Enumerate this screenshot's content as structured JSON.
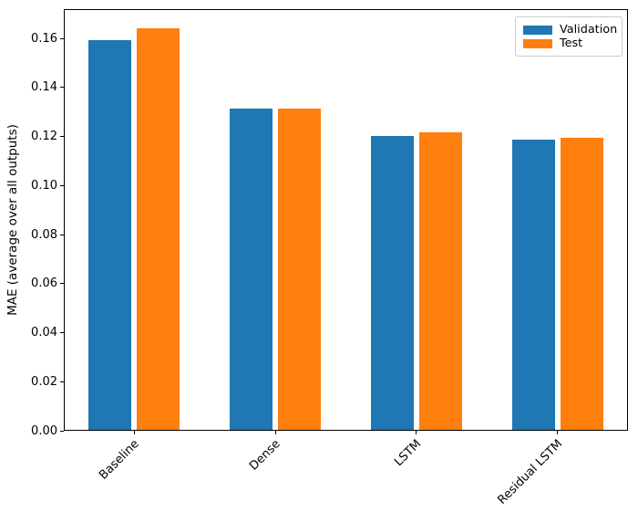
{
  "figure": {
    "background": "#ffffff",
    "axes_edge_color": "#000000"
  },
  "chart_data": {
    "type": "bar",
    "title": "",
    "xlabel": "",
    "ylabel": "MAE (average over all outputs)",
    "categories": [
      "Baseline",
      "Dense",
      "LSTM",
      "Residual LSTM"
    ],
    "series": [
      {
        "name": "Validation",
        "color": "#1f77b4",
        "values": [
          0.159,
          0.131,
          0.12,
          0.1185
        ]
      },
      {
        "name": "Test",
        "color": "#ff7f0e",
        "values": [
          0.164,
          0.131,
          0.1215,
          0.1192
        ]
      }
    ],
    "ylim": [
      0,
      0.172
    ],
    "ytick_values": [
      0.0,
      0.02,
      0.04,
      0.06,
      0.08,
      0.1,
      0.12,
      0.14,
      0.16
    ],
    "ytick_labels": [
      "0.00",
      "0.02",
      "0.04",
      "0.06",
      "0.08",
      "0.10",
      "0.12",
      "0.14",
      "0.16"
    ],
    "xtick_rotation_deg": 45,
    "grid": false,
    "legend_position": "upper right",
    "legend_entries": [
      "Validation",
      "Test"
    ]
  }
}
